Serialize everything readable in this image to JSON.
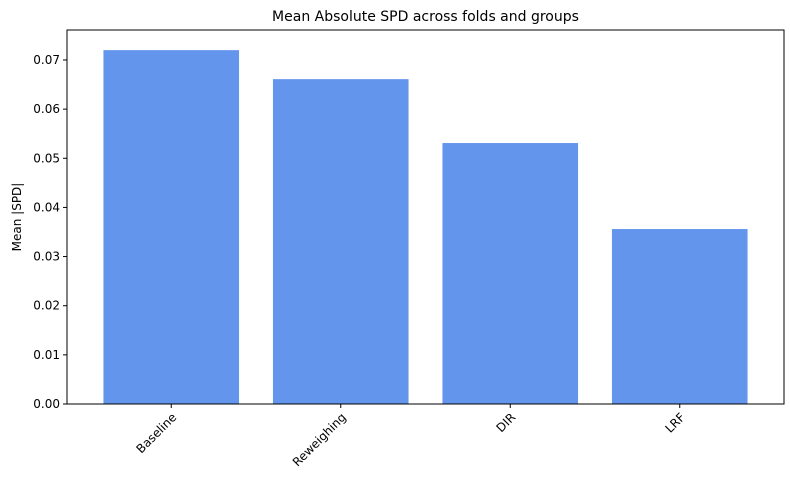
{
  "chart_data": {
    "type": "bar",
    "title": "Mean Absolute SPD across folds and groups",
    "y_label": "Mean |SPD|",
    "categories": [
      "Baseline",
      "Reweighing",
      "DIR",
      "LRF"
    ],
    "values": [
      0.072,
      0.0661,
      0.0531,
      0.0356
    ],
    "color": "#6495ed",
    "ylim": [
      0,
      0.0761
    ],
    "yticks": [
      {
        "value": 0,
        "label": "0.00"
      },
      {
        "value": 0.01,
        "label": "0.01"
      },
      {
        "value": 0.02,
        "label": "0.02"
      },
      {
        "value": 0.03,
        "label": "0.03"
      },
      {
        "value": 0.04,
        "label": "0.04"
      },
      {
        "value": 0.05,
        "label": "0.05"
      },
      {
        "value": 0.06,
        "label": "0.06"
      },
      {
        "value": 0.07,
        "label": "0.07"
      }
    ],
    "grid": false
  }
}
